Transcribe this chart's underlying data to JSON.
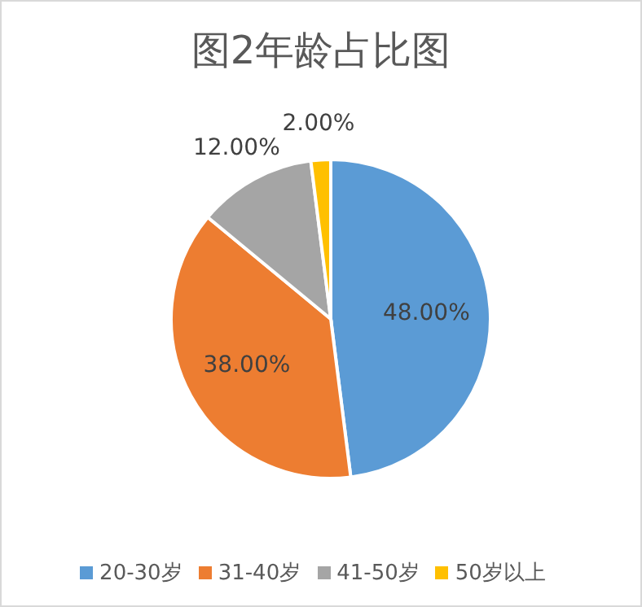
{
  "chart_data": {
    "type": "pie",
    "title": "图2年龄占比图",
    "categories": [
      "20-30岁",
      "31-40岁",
      "41-50岁",
      "50岁以上"
    ],
    "values": [
      48,
      38,
      12,
      2
    ],
    "colors": [
      "#5b9bd5",
      "#ed7d31",
      "#a5a5a5",
      "#ffc000"
    ],
    "value_labels": [
      "48.00%",
      "38.00%",
      "12.00%",
      "2.00%"
    ],
    "legend": "bottom"
  }
}
